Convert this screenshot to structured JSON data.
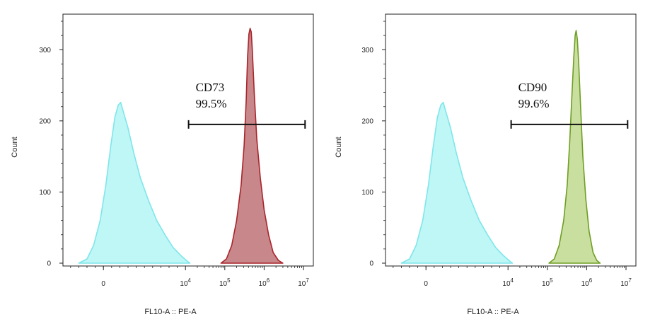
{
  "chart_data": [
    {
      "type": "area",
      "xlabel": "FL10-A :: PE-A",
      "ylabel": "Count",
      "xscale": "biexponential",
      "xlim": [
        -10000,
        10000000
      ],
      "ylim": [
        0,
        350
      ],
      "x_ticks": [
        {
          "value": 0,
          "base": "0",
          "exp": ""
        },
        {
          "value": 10000,
          "base": "10",
          "exp": "4"
        },
        {
          "value": 100000,
          "base": "10",
          "exp": "5"
        },
        {
          "value": 1000000,
          "base": "10",
          "exp": "6"
        },
        {
          "value": 10000000,
          "base": "10",
          "exp": "7"
        }
      ],
      "y_ticks": [
        0,
        100,
        200,
        300
      ],
      "gate": {
        "name": "CD73",
        "value": "99.5%",
        "range": [
          12000,
          11000000
        ],
        "y": 195
      },
      "series": [
        {
          "role": "control",
          "fill": "#bff6f6",
          "stroke": "#7fe6ea",
          "points": [
            [
              -3000,
              0
            ],
            [
              -2000,
              6
            ],
            [
              -1200,
              25
            ],
            [
              -400,
              60
            ],
            [
              300,
              110
            ],
            [
              900,
              165
            ],
            [
              1400,
              205
            ],
            [
              1800,
              222
            ],
            [
              2100,
              226
            ],
            [
              2500,
              210
            ],
            [
              3000,
              190
            ],
            [
              3700,
              155
            ],
            [
              4500,
              120
            ],
            [
              5500,
              88
            ],
            [
              6500,
              60
            ],
            [
              7500,
              40
            ],
            [
              8500,
              22
            ],
            [
              9500,
              10
            ],
            [
              11000,
              3
            ],
            [
              13000,
              0
            ]
          ]
        },
        {
          "role": "stained",
          "fill": "#c8878a",
          "stroke": "#a8252b",
          "points": [
            [
              80000,
              0
            ],
            [
              110000,
              6
            ],
            [
              150000,
              25
            ],
            [
              200000,
              60
            ],
            [
              260000,
              110
            ],
            [
              310000,
              165
            ],
            [
              350000,
              230
            ],
            [
              380000,
              290
            ],
            [
              410000,
              322
            ],
            [
              440000,
              330
            ],
            [
              470000,
              325
            ],
            [
              500000,
              300
            ],
            [
              560000,
              240
            ],
            [
              650000,
              175
            ],
            [
              800000,
              120
            ],
            [
              1000000,
              75
            ],
            [
              1300000,
              40
            ],
            [
              1700000,
              15
            ],
            [
              2300000,
              4
            ],
            [
              3000000,
              0
            ]
          ]
        }
      ]
    },
    {
      "type": "area",
      "xlabel": "FL10-A :: PE-A",
      "ylabel": "Count",
      "xscale": "biexponential",
      "xlim": [
        -10000,
        10000000
      ],
      "ylim": [
        0,
        350
      ],
      "x_ticks": [
        {
          "value": 0,
          "base": "0",
          "exp": ""
        },
        {
          "value": 10000,
          "base": "10",
          "exp": "4"
        },
        {
          "value": 100000,
          "base": "10",
          "exp": "5"
        },
        {
          "value": 1000000,
          "base": "10",
          "exp": "6"
        },
        {
          "value": 10000000,
          "base": "10",
          "exp": "7"
        }
      ],
      "y_ticks": [
        0,
        100,
        200,
        300
      ],
      "gate": {
        "name": "CD90",
        "value": "99.6%",
        "range": [
          12000,
          11000000
        ],
        "y": 195
      },
      "series": [
        {
          "role": "control",
          "fill": "#bff6f6",
          "stroke": "#7fe6ea",
          "points": [
            [
              -3000,
              0
            ],
            [
              -2000,
              6
            ],
            [
              -1200,
              25
            ],
            [
              -400,
              60
            ],
            [
              300,
              110
            ],
            [
              900,
              165
            ],
            [
              1400,
              205
            ],
            [
              1800,
              222
            ],
            [
              2100,
              226
            ],
            [
              2500,
              210
            ],
            [
              3000,
              190
            ],
            [
              3700,
              155
            ],
            [
              4500,
              120
            ],
            [
              5500,
              88
            ],
            [
              6500,
              60
            ],
            [
              7500,
              40
            ],
            [
              8500,
              22
            ],
            [
              9500,
              10
            ],
            [
              11000,
              3
            ],
            [
              13000,
              0
            ]
          ]
        },
        {
          "role": "stained",
          "fill": "#c9df9f",
          "stroke": "#6f9e24",
          "points": [
            [
              110000,
              0
            ],
            [
              150000,
              6
            ],
            [
              200000,
              25
            ],
            [
              260000,
              60
            ],
            [
              320000,
              110
            ],
            [
              370000,
              170
            ],
            [
              420000,
              235
            ],
            [
              470000,
              290
            ],
            [
              510000,
              320
            ],
            [
              540000,
              327
            ],
            [
              580000,
              315
            ],
            [
              630000,
              280
            ],
            [
              700000,
              220
            ],
            [
              800000,
              150
            ],
            [
              950000,
              90
            ],
            [
              1150000,
              45
            ],
            [
              1450000,
              15
            ],
            [
              1800000,
              4
            ],
            [
              2200000,
              0
            ]
          ]
        }
      ]
    }
  ]
}
